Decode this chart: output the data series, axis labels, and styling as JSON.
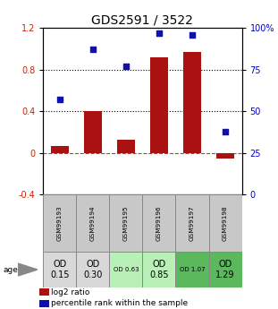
{
  "title": "GDS2591 / 3522",
  "samples": [
    "GSM99193",
    "GSM99194",
    "GSM99195",
    "GSM99196",
    "GSM99197",
    "GSM99198"
  ],
  "log2_ratio": [
    0.07,
    0.4,
    0.13,
    0.92,
    0.97,
    -0.05
  ],
  "percentile_rank": [
    57,
    87,
    77,
    97,
    96,
    38
  ],
  "bar_color": "#aa1111",
  "dot_color": "#1111aa",
  "ylim_left": [
    -0.4,
    1.2
  ],
  "ylim_right": [
    0,
    100
  ],
  "yticks_left": [
    -0.4,
    0.0,
    0.4,
    0.8,
    1.2
  ],
  "yticks_right": [
    0,
    25,
    50,
    75,
    100
  ],
  "hline_values": [
    0.4,
    0.8
  ],
  "age_labels": [
    "OD\n0.15",
    "OD\n0.30",
    "OD 0.63",
    "OD\n0.85",
    "OD 1.07",
    "OD\n1.29"
  ],
  "age_fontsize_big": [
    true,
    true,
    false,
    true,
    false,
    true
  ],
  "age_bg_colors": [
    "#d8d8d8",
    "#d8d8d8",
    "#b8f0b8",
    "#b8f0b8",
    "#5cb85c",
    "#5cb85c"
  ],
  "sample_bg_color": "#c8c8c8",
  "legend_items": [
    {
      "color": "#aa1111",
      "label": "log2 ratio"
    },
    {
      "color": "#1111aa",
      "label": "percentile rank within the sample"
    }
  ],
  "left_tick_color": "#cc2200",
  "right_tick_color": "#0000cc",
  "zero_line_color": "#cc3333",
  "title_fontsize": 10,
  "tick_fontsize": 7,
  "legend_fontsize": 6.5
}
